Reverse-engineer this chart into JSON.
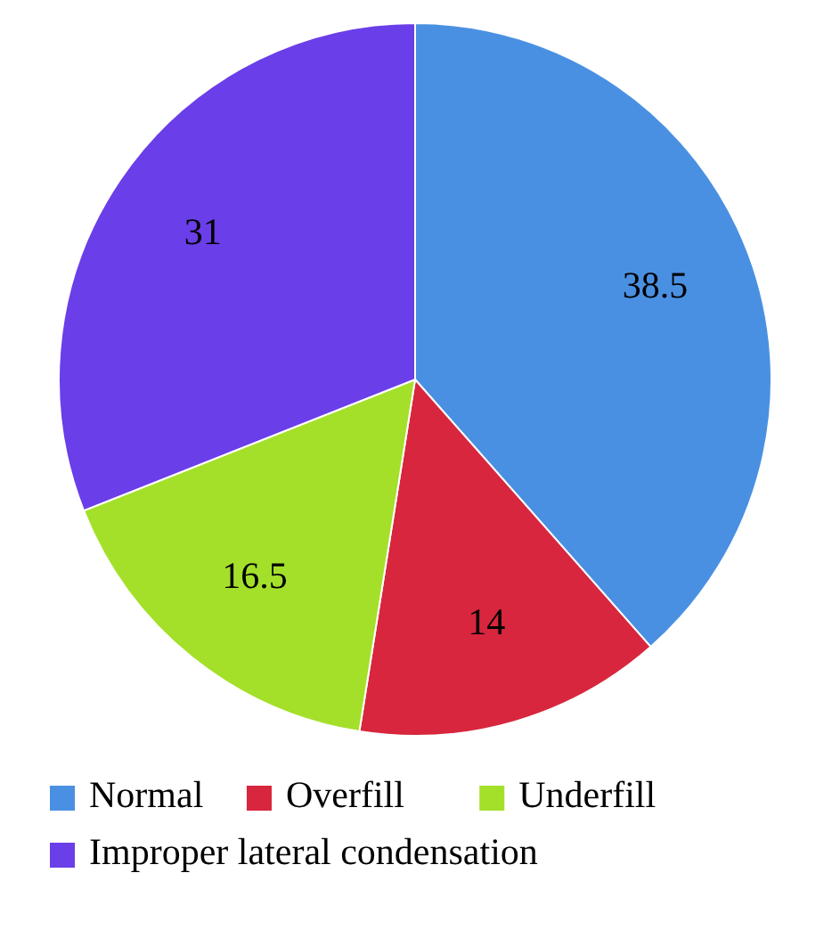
{
  "chart_data": {
    "type": "pie",
    "categories": [
      "Normal",
      "Overfill",
      "Underfill",
      "Improper lateral condensation"
    ],
    "values": [
      38.5,
      14,
      16.5,
      31
    ],
    "colors": [
      "#4a90e2",
      "#d7263d",
      "#a4e02a",
      "#6a3ee8"
    ],
    "data_labels": true,
    "legend": "bottom"
  }
}
